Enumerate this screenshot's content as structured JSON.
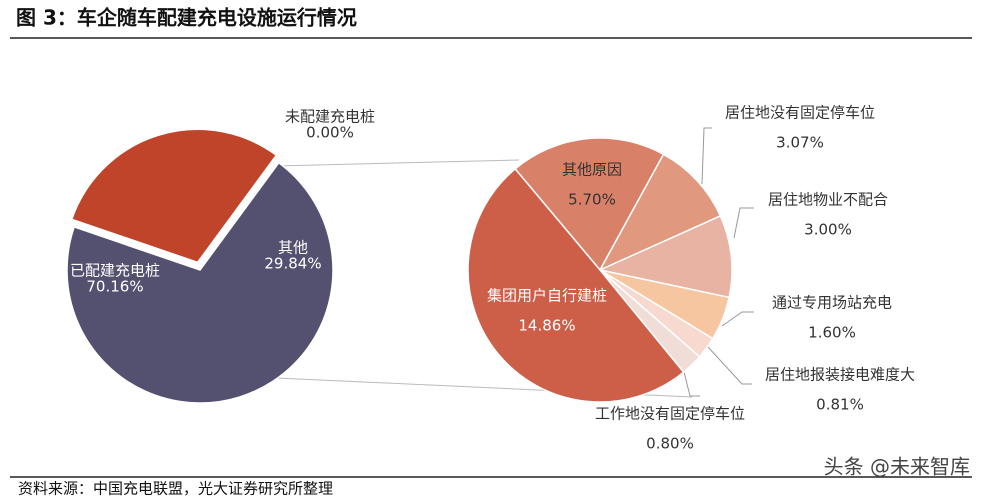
{
  "title": "图 3：车企随车配建充电设施运行情况",
  "source": "资料来源：中国充电联盟，光大证券研究所整理",
  "watermark": "头条 @未来智库",
  "chart_data": [
    {
      "type": "pie",
      "categories": [
        "已配建充电桩",
        "其他",
        "未配建充电桩"
      ],
      "values": [
        70.16,
        29.84,
        0
      ],
      "value_labels": [
        "70.16%",
        "29.84%",
        "0.00%"
      ],
      "colors": [
        "#545070",
        "#c0442a",
        "#999999"
      ]
    },
    {
      "type": "pie",
      "categories": [
        "其他原因",
        "居住地没有固定停车位",
        "居住地物业不配合",
        "通过专用场站充电",
        "居住地报装接电难度大",
        "工作地没有固定停车位",
        "集团用户自行建桩"
      ],
      "values": [
        5.7,
        3.07,
        3.0,
        1.6,
        0.81,
        0.8,
        14.86
      ],
      "value_labels": [
        "5.70%",
        "3.07%",
        "3.00%",
        "1.60%",
        "0.81%",
        "0.80%",
        "14.86%"
      ],
      "colors": [
        "#d88068",
        "#e0997f",
        "#e8b3a2",
        "#f5c6a0",
        "#f7d9cf",
        "#f0ddd8",
        "#cd5e48"
      ]
    }
  ]
}
